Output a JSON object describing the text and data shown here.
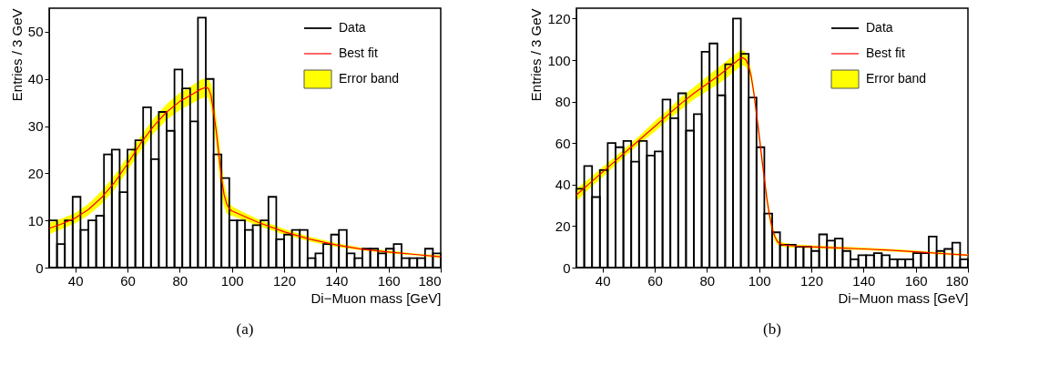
{
  "chart_data": [
    {
      "type": "histogram",
      "xlabel": "Di−Muon mass [GeV]",
      "ylabel": "Entries / 3 GeV",
      "annotations": [
        "(a)"
      ],
      "bins": [
        30,
        33,
        36,
        39,
        42,
        45,
        48,
        51,
        54,
        57,
        60,
        63,
        66,
        69,
        72,
        75,
        78,
        81,
        84,
        87,
        90,
        93,
        96,
        99,
        102,
        105,
        108,
        111,
        114,
        117,
        120,
        123,
        126,
        129,
        132,
        135,
        138,
        141,
        144,
        147,
        150,
        153,
        156,
        159,
        162,
        165,
        168,
        171,
        174,
        177,
        180
      ],
      "xlim": [
        30,
        180
      ],
      "xticks": [
        40,
        60,
        80,
        100,
        120,
        140,
        160,
        180
      ],
      "ylim": [
        0,
        55
      ],
      "yticks": [
        0,
        10,
        20,
        30,
        40,
        50
      ],
      "grid": false,
      "legend": "top right",
      "series": [
        {
          "name": "Data",
          "color": "#000000",
          "values": [
            10,
            5,
            10,
            15,
            8,
            10,
            11,
            24,
            25,
            16,
            25,
            27,
            34,
            23,
            33,
            29,
            42,
            38,
            31,
            53,
            40,
            24,
            19,
            10,
            10,
            8,
            9,
            10,
            15,
            6,
            7,
            8,
            8,
            2,
            3,
            5,
            7,
            8,
            3,
            2,
            4,
            4,
            3,
            4,
            5,
            2,
            2,
            2,
            4,
            3
          ]
        },
        {
          "name": "Best fit",
          "type": "line",
          "color": "#ff0000",
          "x": [
            30,
            35,
            40,
            45,
            50,
            55,
            60,
            65,
            70,
            75,
            80,
            85,
            88,
            90,
            91,
            92,
            93,
            94,
            95,
            96,
            97,
            98,
            99,
            100,
            105,
            110,
            120,
            130,
            140,
            150,
            160,
            170,
            180
          ],
          "values": [
            8.3,
            9.3,
            10.5,
            12.3,
            14.8,
            18,
            22,
            26.3,
            30,
            33,
            35.2,
            36.8,
            37.8,
            38.2,
            38,
            36.5,
            33,
            29,
            24,
            19,
            15.5,
            13.5,
            12.5,
            12,
            10.8,
            9.6,
            7.6,
            6,
            4.8,
            3.9,
            3.3,
            2.8,
            2.3
          ],
          "upper": [
            9.5,
            10.4,
            11.6,
            13.5,
            16.2,
            19.5,
            23.5,
            27.8,
            31.6,
            34.7,
            37,
            38.7,
            39.8,
            40.2,
            40,
            39,
            36,
            32,
            27.5,
            22.5,
            18,
            15.5,
            14,
            13,
            11.6,
            10.3,
            8.2,
            6.5,
            5.2,
            4.2,
            3.6,
            3,
            2.6
          ],
          "lower": [
            7.1,
            8.2,
            9.4,
            11.1,
            13.4,
            16.5,
            20.5,
            24.8,
            28.4,
            31.3,
            33.4,
            34.9,
            35.8,
            36.2,
            36,
            34,
            30,
            26,
            20.5,
            15.5,
            13,
            11.5,
            11,
            11,
            10,
            8.9,
            7,
            5.5,
            4.4,
            3.6,
            3,
            2.6,
            2
          ]
        },
        {
          "name": "Error band",
          "type": "area",
          "color": "#ffff00"
        }
      ]
    },
    {
      "type": "histogram",
      "xlabel": "Di−Muon mass [GeV]",
      "ylabel": "Entries / 3 GeV",
      "annotations": [
        "(b)"
      ],
      "bins": [
        30,
        33,
        36,
        39,
        42,
        45,
        48,
        51,
        54,
        57,
        60,
        63,
        66,
        69,
        72,
        75,
        78,
        81,
        84,
        87,
        90,
        93,
        96,
        99,
        102,
        105,
        108,
        111,
        114,
        117,
        120,
        123,
        126,
        129,
        132,
        135,
        138,
        141,
        144,
        147,
        150,
        153,
        156,
        159,
        162,
        165,
        168,
        171,
        174,
        177,
        180
      ],
      "xlim": [
        30,
        180
      ],
      "xticks": [
        40,
        60,
        80,
        100,
        120,
        140,
        160,
        180
      ],
      "ylim": [
        0,
        125
      ],
      "yticks": [
        0,
        20,
        40,
        60,
        80,
        100,
        120
      ],
      "grid": false,
      "legend": "top right",
      "series": [
        {
          "name": "Data",
          "color": "#000000",
          "values": [
            38,
            49,
            34,
            47,
            60,
            58,
            61,
            51,
            61,
            54,
            56,
            81,
            72,
            84,
            66,
            74,
            104,
            108,
            83,
            98,
            120,
            103,
            82,
            58,
            26,
            17,
            11,
            11,
            10,
            10,
            8,
            16,
            13,
            14,
            8,
            4,
            6,
            6,
            7,
            6,
            4,
            4,
            4,
            7,
            7,
            15,
            8,
            9,
            12,
            4
          ]
        },
        {
          "name": "Best fit",
          "type": "line",
          "color": "#ff0000",
          "x": [
            30,
            35,
            40,
            45,
            50,
            55,
            60,
            65,
            70,
            75,
            80,
            85,
            90,
            92,
            93,
            94,
            95,
            96,
            97,
            98,
            99,
            100,
            101,
            102,
            103,
            104,
            105,
            106,
            107,
            108,
            110,
            115,
            120,
            130,
            140,
            150,
            160,
            170,
            180
          ],
          "values": [
            35,
            40.5,
            46,
            51.5,
            57,
            62.5,
            68,
            73.5,
            79,
            84,
            88.5,
            93,
            98,
            100,
            101,
            101,
            100,
            97,
            92,
            84,
            74,
            64,
            53,
            43,
            33,
            25,
            19,
            15,
            12.5,
            11.5,
            10.8,
            10.3,
            10,
            9.5,
            9,
            8.4,
            7.6,
            6.8,
            6
          ],
          "upper": [
            38,
            43,
            48.5,
            53.5,
            59,
            64.5,
            70.5,
            76,
            82,
            87,
            92,
            97,
            102,
            104,
            105,
            104.5,
            103.5,
            100,
            95,
            87,
            77,
            67,
            56,
            46,
            36,
            28,
            21.5,
            17,
            14,
            12.5,
            11.8,
            11.1,
            10.7,
            10.2,
            9.6,
            9,
            8.2,
            7.3,
            6.5
          ],
          "lower": [
            32,
            38,
            43.5,
            49.5,
            55,
            60.5,
            65.5,
            71,
            76,
            81,
            85,
            89,
            94,
            96,
            97,
            97.5,
            96.5,
            94,
            89,
            81,
            71,
            61,
            50,
            40,
            30,
            22,
            16.5,
            13,
            11,
            10.5,
            9.8,
            9.5,
            9.3,
            8.8,
            8.4,
            7.8,
            7,
            6.3,
            5.5
          ]
        },
        {
          "name": "Error band",
          "type": "area",
          "color": "#ffff00"
        }
      ]
    }
  ]
}
